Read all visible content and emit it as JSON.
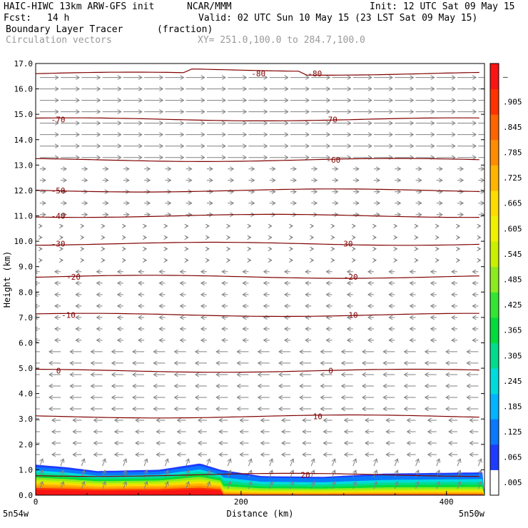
{
  "header": {
    "model": "HAIC-HIWC 13km ARW-GFS init",
    "org": "NCAR/MMM",
    "init": "Init: 12 UTC Sat 09 May 15",
    "fcst_label": "Fcst:",
    "fcst_value": "14 h",
    "valid": "Valid: 02 UTC Sun 10 May 15 (23 LST Sat 09 May 15)",
    "field1": "Boundary Layer Tracer",
    "field1_units": "(fraction)",
    "field2": "Circulation vectors",
    "cross_section": "XY= 251.0,100.0 to 284.7,100.0"
  },
  "chart_data": {
    "type": "heatmap",
    "title": "Boundary Layer Tracer",
    "units": "(fraction)",
    "xlabel": "Distance (km)",
    "ylabel": "Height (km)",
    "xlim": [
      0,
      437
    ],
    "ylim": [
      0,
      17
    ],
    "x_ticks": [
      "0",
      "200",
      "400"
    ],
    "y_ticks": [
      "0.0",
      "1.0",
      "2.0",
      "3.0",
      "4.0",
      "5.0",
      "6.0",
      "7.0",
      "8.0",
      "9.0",
      "10.0",
      "11.0",
      "12.0",
      "13.0",
      "14.0",
      "15.0",
      "16.0",
      "17.0"
    ],
    "x_endpoints": [
      "5n54w",
      "5n50w"
    ],
    "colorbar": {
      "labels": [
        ".005",
        ".065",
        ".125",
        ".185",
        ".245",
        ".305",
        ".365",
        ".425",
        ".485",
        ".545",
        ".605",
        ".665",
        ".725",
        ".785",
        ".845",
        ".905",
        "–"
      ],
      "colors": [
        "#ffffff",
        "#1e3cff",
        "#0a78ff",
        "#00b4ff",
        "#00dcdc",
        "#00dc8c",
        "#00dc3c",
        "#32e632",
        "#8ceb1e",
        "#c8f000",
        "#f0f000",
        "#ffdc00",
        "#ffb400",
        "#ff8c00",
        "#ff6400",
        "#ff3200",
        "#fa1414"
      ]
    },
    "tracer_top_km": [
      {
        "x": 0,
        "top": 1.2
      },
      {
        "x": 30,
        "top": 1.1
      },
      {
        "x": 60,
        "top": 0.95
      },
      {
        "x": 120,
        "top": 1.0
      },
      {
        "x": 160,
        "top": 1.25
      },
      {
        "x": 180,
        "top": 1.0
      },
      {
        "x": 220,
        "top": 0.75
      },
      {
        "x": 280,
        "top": 0.72
      },
      {
        "x": 340,
        "top": 0.85
      },
      {
        "x": 437,
        "top": 0.9
      }
    ],
    "temperature_contours": [
      {
        "label": "-80",
        "height_km": 16.6,
        "label_x": [
          210,
          265
        ]
      },
      {
        "label": "-70",
        "height_km": 14.8,
        "label_x": [
          15,
          280
        ]
      },
      {
        "label": "-60",
        "height_km": 13.2,
        "label_x": [
          283
        ]
      },
      {
        "label": "-50",
        "height_km": 12.0,
        "label_x": [
          15
        ]
      },
      {
        "label": "-40",
        "height_km": 11.0,
        "label_x": [
          15
        ]
      },
      {
        "label": "-30",
        "height_km": 9.9,
        "label_x": [
          15,
          295
        ]
      },
      {
        "label": "-20",
        "height_km": 8.6,
        "label_x": [
          30,
          300
        ]
      },
      {
        "label": "-10",
        "height_km": 7.1,
        "label_x": [
          25,
          300
        ]
      },
      {
        "label": "0",
        "height_km": 4.9,
        "label_x": [
          20,
          285
        ]
      },
      {
        "label": "10",
        "height_km": 3.1,
        "label_x": [
          270
        ]
      },
      {
        "label": "20",
        "height_km": 0.8,
        "label_x": [
          258
        ]
      }
    ]
  }
}
